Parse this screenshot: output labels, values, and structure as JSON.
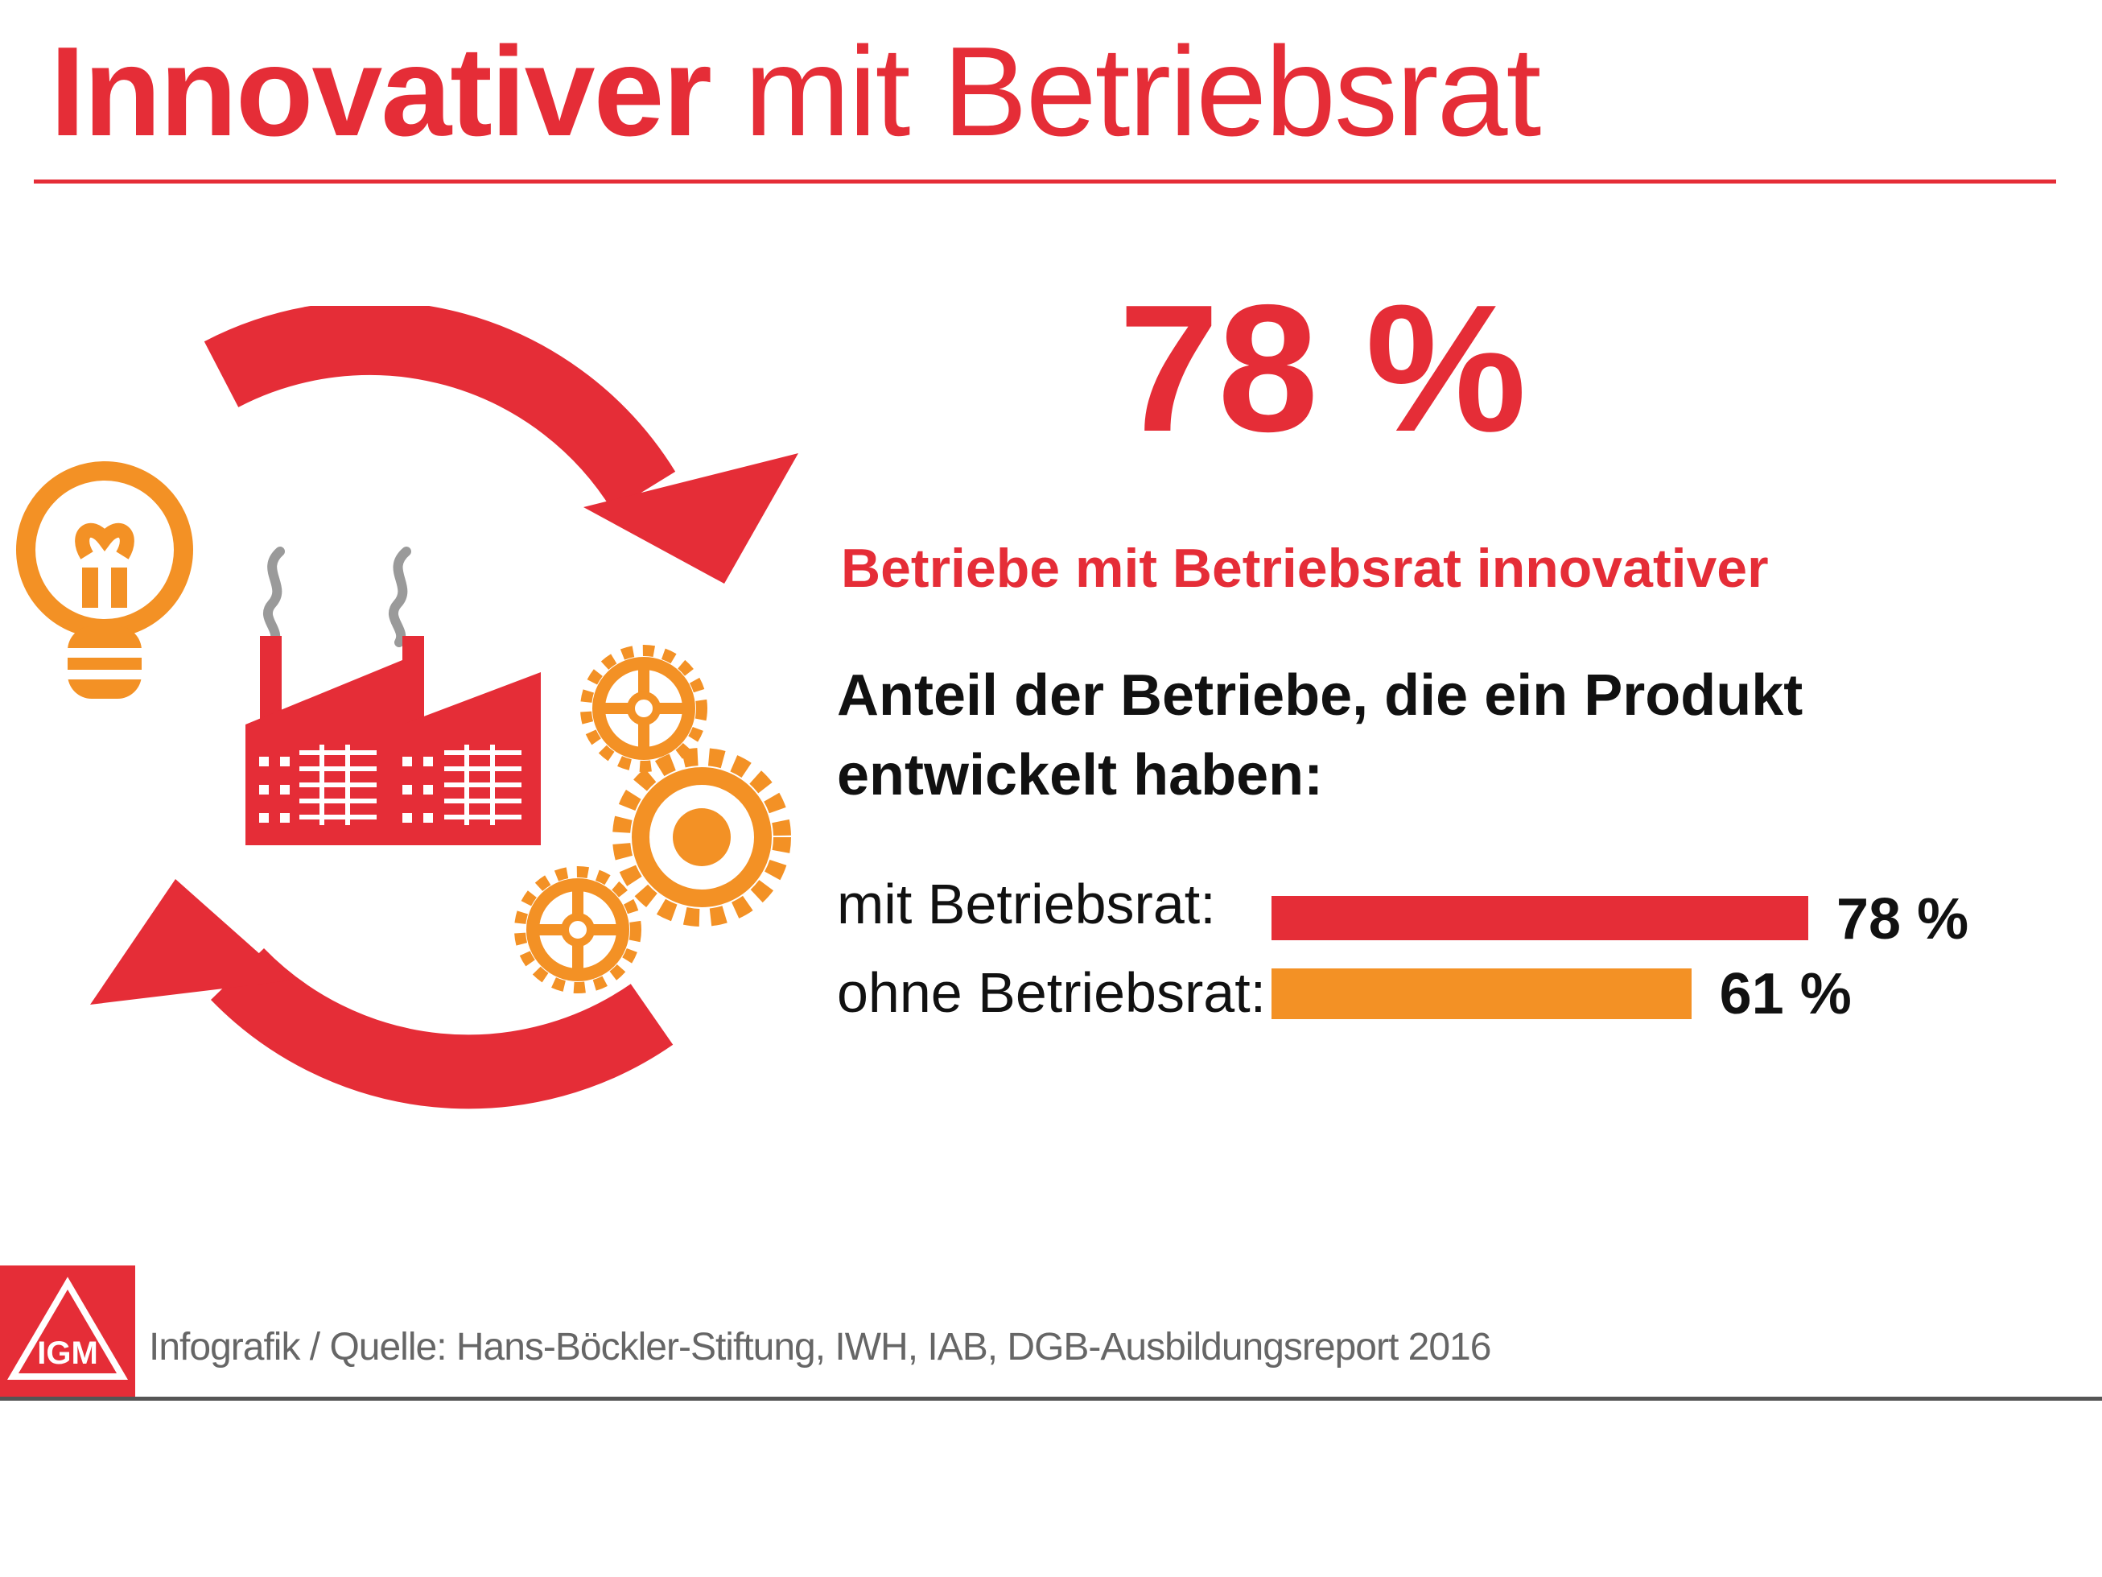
{
  "title": {
    "bold": "Innovativer",
    "regular": "mit Betriebsrat"
  },
  "big_number": "78 %",
  "headline": "Betriebe mit Betriebsrat innovativer",
  "chart_data": {
    "type": "bar",
    "orientation": "horizontal",
    "title": "Anteil der Betriebe, die ein Produkt entwickelt haben:",
    "categories": [
      "mit Betriebsrat:",
      "ohne Betriebsrat:"
    ],
    "values": [
      78,
      61
    ],
    "value_labels": [
      "78 %",
      "61 %"
    ],
    "unit": "%",
    "colors": [
      "#e52d37",
      "#f39125"
    ],
    "xlim": [
      0,
      100
    ],
    "grid": false
  },
  "footer": {
    "source": "Infografik / Quelle: Hans-Böckler-Stiftung, IWH, IAB, DGB-Ausbildungsreport 2016",
    "logo_text": "IGM"
  },
  "colors": {
    "accent_red": "#e52d37",
    "accent_orange": "#f39125",
    "smoke_gray": "#9a9a9a",
    "text_dark": "#111111",
    "footer_gray": "#666666"
  },
  "icons": [
    "cycle-arrow-top-icon",
    "cycle-arrow-bottom-icon",
    "lightbulb-icon",
    "factory-icon",
    "gear-icon"
  ]
}
